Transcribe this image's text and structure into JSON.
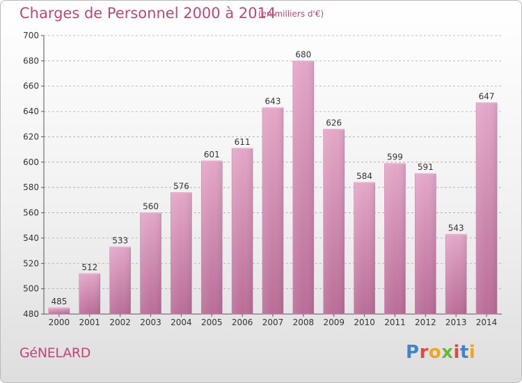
{
  "header": {
    "title": "Charges de Personnel 2000 à 2014",
    "unit": "(en milliers d'€)"
  },
  "footer": {
    "commune": "GéNELARD",
    "logo_text": "Proxiti",
    "logo_colors": [
      "#3e86c6",
      "#e8463c",
      "#f0a51e",
      "#6bb839",
      "#e8463c",
      "#3e86c6",
      "#f0a51e"
    ]
  },
  "colors": {
    "bar": "#d58fb5",
    "text_accent": "#c2447a"
  },
  "chart_data": {
    "type": "bar",
    "title": "Charges de Personnel 2000 à 2014",
    "categories": [
      "2000",
      "2001",
      "2002",
      "2003",
      "2004",
      "2005",
      "2006",
      "2007",
      "2008",
      "2009",
      "2010",
      "2011",
      "2012",
      "2013",
      "2014"
    ],
    "values": [
      485,
      512,
      533,
      560,
      576,
      601,
      611,
      643,
      680,
      626,
      584,
      599,
      591,
      543,
      647
    ],
    "ylim": [
      480,
      700
    ],
    "yticks": [
      480,
      500,
      520,
      540,
      560,
      580,
      600,
      620,
      640,
      660,
      680,
      700
    ],
    "grid": true
  }
}
